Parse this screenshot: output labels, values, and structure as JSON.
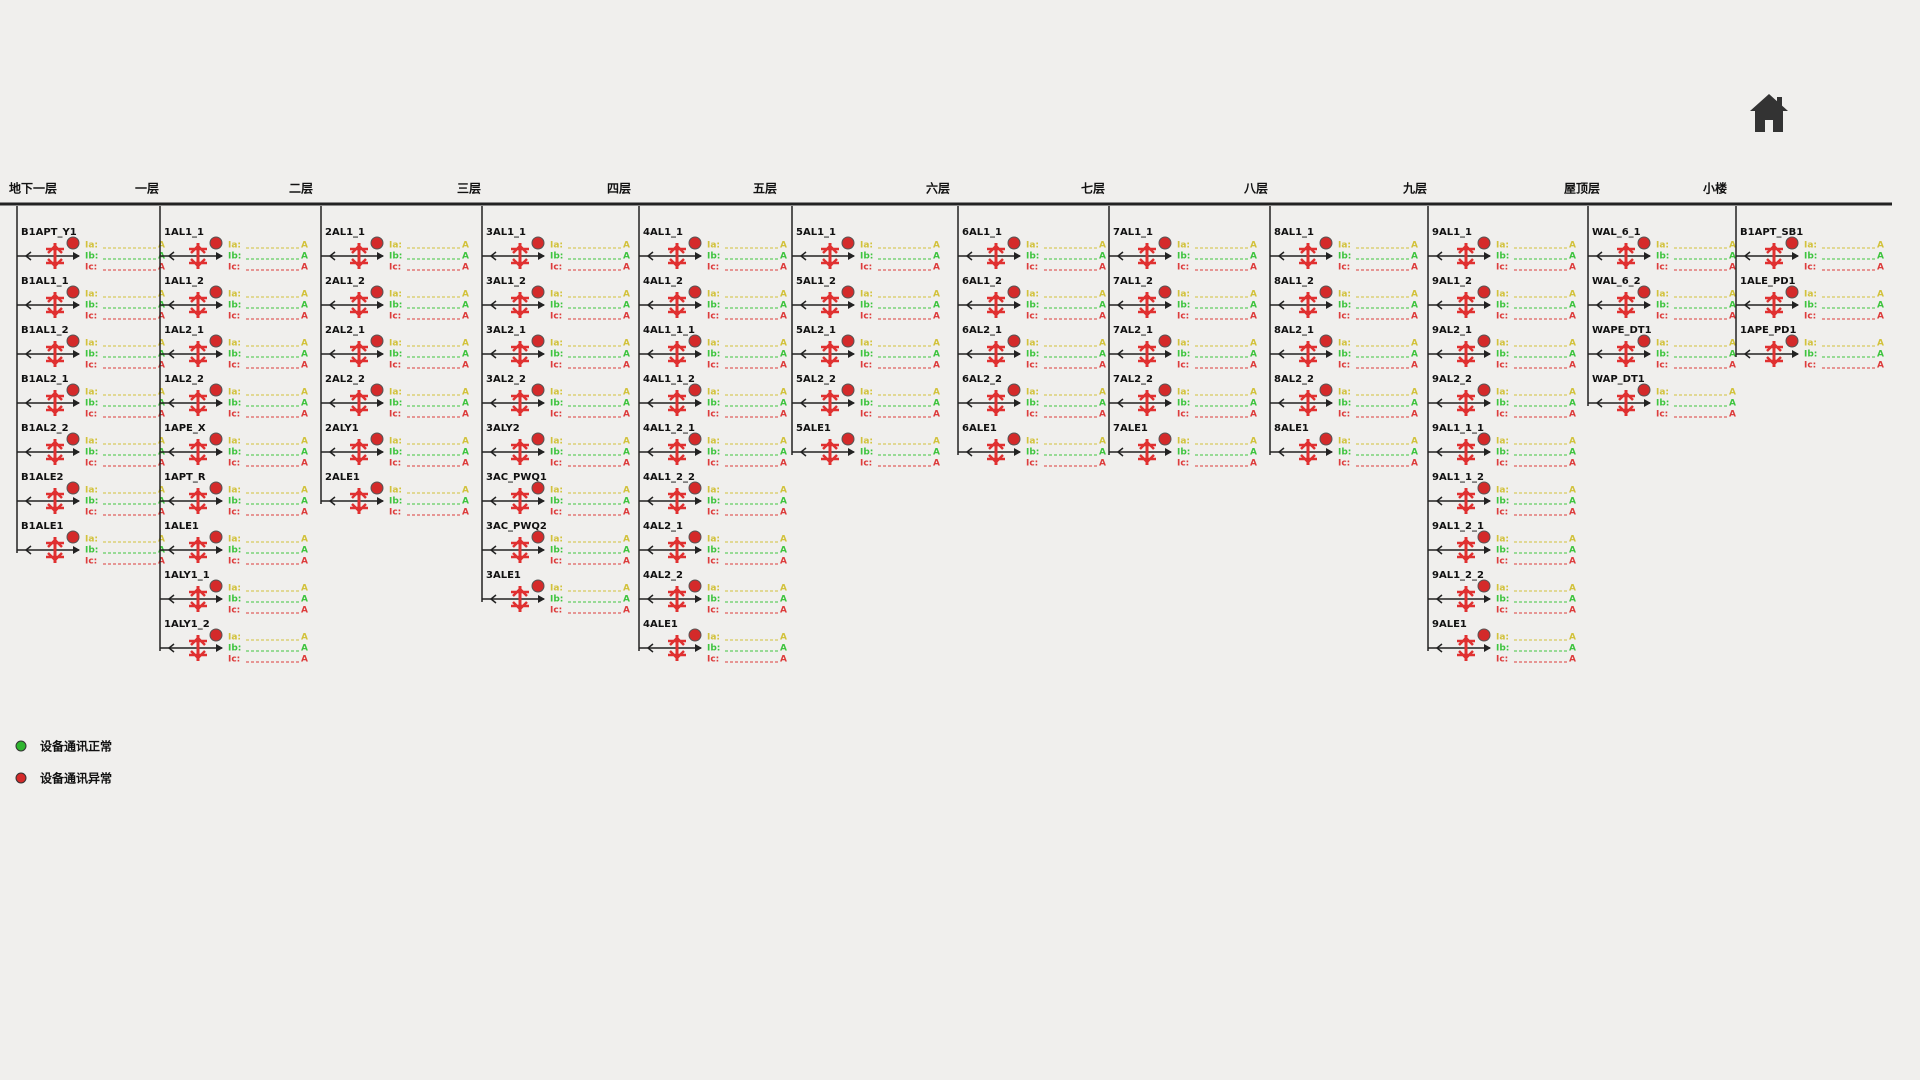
{
  "readings": {
    "ia": "Ia:",
    "ib": "Ib:",
    "ic": "Ic:",
    "unit": "A"
  },
  "floors": [
    {
      "name": "地下一层",
      "devices": [
        "B1APT_Y1",
        "B1AL1_1",
        "B1AL1_2",
        "B1AL2_1",
        "B1AL2_2",
        "B1ALE2",
        "B1ALE1"
      ]
    },
    {
      "name": "一层",
      "devices": [
        "1AL1_1",
        "1AL1_2",
        "1AL2_1",
        "1AL2_2",
        "1APE_X",
        "1APT_R",
        "1ALE1",
        "1ALY1_1",
        "1ALY1_2"
      ]
    },
    {
      "name": "二层",
      "devices": [
        "2AL1_1",
        "2AL1_2",
        "2AL2_1",
        "2AL2_2",
        "2ALY1",
        "2ALE1"
      ]
    },
    {
      "name": "三层",
      "devices": [
        "3AL1_1",
        "3AL1_2",
        "3AL2_1",
        "3AL2_2",
        "3ALY2",
        "3AC_PWQ1",
        "3AC_PWQ2",
        "3ALE1"
      ]
    },
    {
      "name": "四层",
      "devices": [
        "4AL1_1",
        "4AL1_2",
        "4AL1_1_1",
        "4AL1_1_2",
        "4AL1_2_1",
        "4AL1_2_2",
        "4AL2_1",
        "4AL2_2",
        "4ALE1"
      ]
    },
    {
      "name": "五层",
      "devices": [
        "5AL1_1",
        "5AL1_2",
        "5AL2_1",
        "5AL2_2",
        "5ALE1"
      ]
    },
    {
      "name": "六层",
      "devices": [
        "6AL1_1",
        "6AL1_2",
        "6AL2_1",
        "6AL2_2",
        "6ALE1"
      ]
    },
    {
      "name": "七层",
      "devices": [
        "7AL1_1",
        "7AL1_2",
        "7AL2_1",
        "7AL2_2",
        "7ALE1"
      ]
    },
    {
      "name": "八层",
      "devices": [
        "8AL1_1",
        "8AL1_2",
        "8AL2_1",
        "8AL2_2",
        "8ALE1"
      ]
    },
    {
      "name": "九层",
      "devices": [
        "9AL1_1",
        "9AL1_2",
        "9AL2_1",
        "9AL2_2",
        "9AL1_1_1",
        "9AL1_1_2",
        "9AL1_2_1",
        "9AL1_2_2",
        "9ALE1"
      ]
    },
    {
      "name": "屋顶层",
      "devices": [
        "WAL_6_1",
        "WAL_6_2",
        "WAPE_DT1",
        "WAP_DT1"
      ]
    },
    {
      "name": "小楼",
      "devices": [
        "B1APT_SB1",
        "1ALE_PD1",
        "1APE_PD1"
      ]
    }
  ],
  "legend": [
    {
      "label": "设备通讯正常",
      "color": "#2fb52f"
    },
    {
      "label": "设备通讯异常",
      "color": "#d42a2a"
    }
  ]
}
